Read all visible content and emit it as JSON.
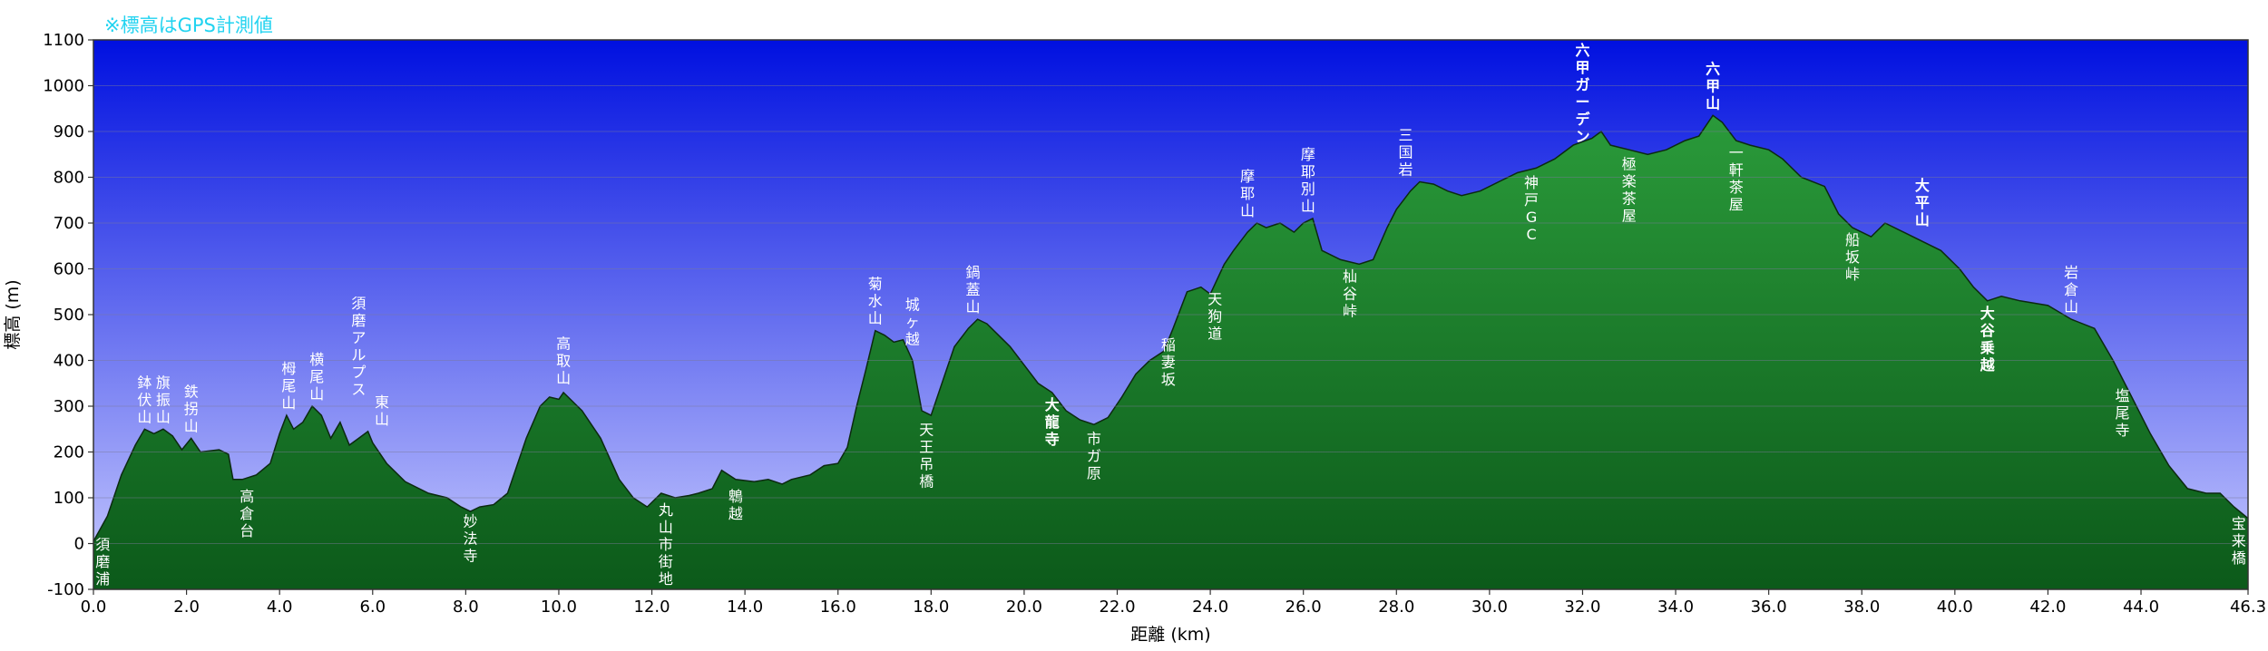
{
  "note": "※標高はGPS計測値",
  "chart_data": {
    "type": "area",
    "title": "",
    "xlabel": "距離 (km)",
    "ylabel": "標高 (m)",
    "xlim": [
      0,
      46.3
    ],
    "ylim": [
      -100,
      1100
    ],
    "grid": true,
    "x_ticks": [
      "0.0",
      "2.0",
      "4.0",
      "6.0",
      "8.0",
      "10.0",
      "12.0",
      "14.0",
      "16.0",
      "18.0",
      "20.0",
      "22.0",
      "24.0",
      "26.0",
      "28.0",
      "30.0",
      "32.0",
      "34.0",
      "36.0",
      "38.0",
      "40.0",
      "42.0",
      "44.0",
      "46.3"
    ],
    "y_ticks": [
      "-100",
      "0",
      "100",
      "200",
      "300",
      "400",
      "500",
      "600",
      "700",
      "800",
      "900",
      "1000",
      "1100"
    ],
    "colors": {
      "sky_top": "#0010e0",
      "sky_bottom": "#c8cbff",
      "terrain_top": "#2a9a3a",
      "terrain_bottom": "#0c5a1a",
      "edge": "#0c2a10"
    },
    "profile": [
      [
        0,
        5
      ],
      [
        0.3,
        60
      ],
      [
        0.6,
        150
      ],
      [
        0.9,
        215
      ],
      [
        1.1,
        250
      ],
      [
        1.3,
        240
      ],
      [
        1.5,
        250
      ],
      [
        1.7,
        235
      ],
      [
        1.9,
        205
      ],
      [
        2.1,
        230
      ],
      [
        2.3,
        200
      ],
      [
        2.7,
        205
      ],
      [
        2.9,
        195
      ],
      [
        3.0,
        140
      ],
      [
        3.2,
        140
      ],
      [
        3.5,
        150
      ],
      [
        3.8,
        175
      ],
      [
        4.0,
        240
      ],
      [
        4.15,
        280
      ],
      [
        4.3,
        250
      ],
      [
        4.5,
        265
      ],
      [
        4.7,
        300
      ],
      [
        4.9,
        280
      ],
      [
        5.1,
        230
      ],
      [
        5.3,
        265
      ],
      [
        5.5,
        215
      ],
      [
        5.7,
        230
      ],
      [
        5.9,
        245
      ],
      [
        6.0,
        220
      ],
      [
        6.3,
        175
      ],
      [
        6.7,
        135
      ],
      [
        7.2,
        110
      ],
      [
        7.6,
        100
      ],
      [
        7.9,
        80
      ],
      [
        8.1,
        70
      ],
      [
        8.3,
        80
      ],
      [
        8.6,
        85
      ],
      [
        8.9,
        110
      ],
      [
        9.3,
        230
      ],
      [
        9.6,
        300
      ],
      [
        9.8,
        320
      ],
      [
        10.0,
        315
      ],
      [
        10.1,
        330
      ],
      [
        10.3,
        310
      ],
      [
        10.5,
        290
      ],
      [
        10.9,
        230
      ],
      [
        11.3,
        140
      ],
      [
        11.6,
        100
      ],
      [
        11.9,
        80
      ],
      [
        12.2,
        110
      ],
      [
        12.5,
        100
      ],
      [
        12.8,
        105
      ],
      [
        13.0,
        110
      ],
      [
        13.3,
        120
      ],
      [
        13.5,
        160
      ],
      [
        13.8,
        140
      ],
      [
        14.2,
        135
      ],
      [
        14.5,
        140
      ],
      [
        14.8,
        130
      ],
      [
        15.0,
        140
      ],
      [
        15.4,
        150
      ],
      [
        15.7,
        170
      ],
      [
        16.0,
        175
      ],
      [
        16.2,
        210
      ],
      [
        16.4,
        300
      ],
      [
        16.6,
        380
      ],
      [
        16.8,
        465
      ],
      [
        17.0,
        455
      ],
      [
        17.2,
        440
      ],
      [
        17.4,
        445
      ],
      [
        17.6,
        400
      ],
      [
        17.8,
        290
      ],
      [
        18.0,
        280
      ],
      [
        18.3,
        370
      ],
      [
        18.5,
        430
      ],
      [
        18.8,
        470
      ],
      [
        19.0,
        490
      ],
      [
        19.2,
        480
      ],
      [
        19.4,
        460
      ],
      [
        19.7,
        430
      ],
      [
        20.0,
        390
      ],
      [
        20.3,
        350
      ],
      [
        20.6,
        330
      ],
      [
        20.9,
        290
      ],
      [
        21.2,
        270
      ],
      [
        21.5,
        260
      ],
      [
        21.8,
        275
      ],
      [
        22.1,
        320
      ],
      [
        22.4,
        370
      ],
      [
        22.7,
        400
      ],
      [
        23.0,
        420
      ],
      [
        23.2,
        470
      ],
      [
        23.5,
        550
      ],
      [
        23.8,
        560
      ],
      [
        24.0,
        545
      ],
      [
        24.3,
        610
      ],
      [
        24.5,
        640
      ],
      [
        24.8,
        680
      ],
      [
        25.0,
        700
      ],
      [
        25.2,
        690
      ],
      [
        25.5,
        700
      ],
      [
        25.8,
        680
      ],
      [
        26.0,
        700
      ],
      [
        26.2,
        710
      ],
      [
        26.4,
        640
      ],
      [
        26.8,
        620
      ],
      [
        27.2,
        610
      ],
      [
        27.5,
        620
      ],
      [
        27.8,
        690
      ],
      [
        28.0,
        730
      ],
      [
        28.3,
        770
      ],
      [
        28.5,
        790
      ],
      [
        28.8,
        785
      ],
      [
        29.1,
        770
      ],
      [
        29.4,
        760
      ],
      [
        29.8,
        770
      ],
      [
        30.2,
        790
      ],
      [
        30.6,
        810
      ],
      [
        31.0,
        820
      ],
      [
        31.4,
        840
      ],
      [
        31.8,
        870
      ],
      [
        32.2,
        885
      ],
      [
        32.4,
        900
      ],
      [
        32.6,
        870
      ],
      [
        33.0,
        860
      ],
      [
        33.4,
        850
      ],
      [
        33.8,
        860
      ],
      [
        34.2,
        880
      ],
      [
        34.5,
        890
      ],
      [
        34.8,
        935
      ],
      [
        35.0,
        920
      ],
      [
        35.3,
        880
      ],
      [
        35.6,
        870
      ],
      [
        36.0,
        860
      ],
      [
        36.3,
        840
      ],
      [
        36.7,
        800
      ],
      [
        37.2,
        780
      ],
      [
        37.5,
        720
      ],
      [
        37.8,
        690
      ],
      [
        38.2,
        670
      ],
      [
        38.5,
        700
      ],
      [
        38.9,
        680
      ],
      [
        39.3,
        660
      ],
      [
        39.7,
        640
      ],
      [
        40.1,
        600
      ],
      [
        40.4,
        560
      ],
      [
        40.7,
        530
      ],
      [
        41.0,
        540
      ],
      [
        41.4,
        530
      ],
      [
        42.0,
        520
      ],
      [
        42.5,
        490
      ],
      [
        43.0,
        470
      ],
      [
        43.4,
        400
      ],
      [
        43.8,
        320
      ],
      [
        44.2,
        240
      ],
      [
        44.6,
        170
      ],
      [
        45.0,
        120
      ],
      [
        45.4,
        110
      ],
      [
        45.7,
        110
      ],
      [
        46.0,
        80
      ],
      [
        46.3,
        55
      ]
    ],
    "landmarks": [
      {
        "name": "須磨浦",
        "x": 0.2,
        "y": 20,
        "pos": "below",
        "bold": false
      },
      {
        "name": "鉢伏山",
        "x": 1.1,
        "y": 250,
        "pos": "above",
        "bold": false
      },
      {
        "name": "旗振山",
        "x": 1.5,
        "y": 250,
        "pos": "above",
        "bold": false
      },
      {
        "name": "鉄拐山",
        "x": 2.1,
        "y": 230,
        "pos": "above",
        "bold": false
      },
      {
        "name": "高倉台",
        "x": 3.3,
        "y": 130,
        "pos": "below",
        "bold": false
      },
      {
        "name": "栂尾山",
        "x": 4.2,
        "y": 280,
        "pos": "above",
        "bold": false
      },
      {
        "name": "横尾山",
        "x": 4.8,
        "y": 300,
        "pos": "above",
        "bold": false
      },
      {
        "name": "須磨アルプス",
        "x": 5.7,
        "y": 310,
        "pos": "above",
        "bold": false
      },
      {
        "name": "東山",
        "x": 6.2,
        "y": 245,
        "pos": "above",
        "bold": false
      },
      {
        "name": "妙法寺",
        "x": 8.1,
        "y": 75,
        "pos": "below",
        "bold": false
      },
      {
        "name": "高取山",
        "x": 10.1,
        "y": 335,
        "pos": "above",
        "bold": false
      },
      {
        "name": "丸山市街地",
        "x": 12.3,
        "y": 95,
        "pos": "below",
        "bold": false
      },
      {
        "name": "鵯越",
        "x": 13.8,
        "y": 130,
        "pos": "below",
        "bold": false
      },
      {
        "name": "菊水山",
        "x": 16.8,
        "y": 465,
        "pos": "above",
        "bold": false
      },
      {
        "name": "城ヶ越",
        "x": 17.6,
        "y": 420,
        "pos": "above",
        "bold": false
      },
      {
        "name": "天王吊橋",
        "x": 17.9,
        "y": 275,
        "pos": "below",
        "bold": false
      },
      {
        "name": "鍋蓋山",
        "x": 18.9,
        "y": 490,
        "pos": "above",
        "bold": false
      },
      {
        "name": "大龍寺",
        "x": 20.6,
        "y": 330,
        "pos": "below",
        "bold": true
      },
      {
        "name": "市ガ原",
        "x": 21.5,
        "y": 255,
        "pos": "below",
        "bold": false
      },
      {
        "name": "稲妻坂",
        "x": 23.1,
        "y": 460,
        "pos": "below",
        "bold": false
      },
      {
        "name": "天狗道",
        "x": 24.1,
        "y": 560,
        "pos": "below",
        "bold": false
      },
      {
        "name": "摩耶山",
        "x": 24.8,
        "y": 700,
        "pos": "above",
        "bold": false
      },
      {
        "name": "摩耶別山",
        "x": 26.1,
        "y": 710,
        "pos": "above",
        "bold": false
      },
      {
        "name": "杣谷峠",
        "x": 27.0,
        "y": 610,
        "pos": "below",
        "bold": false
      },
      {
        "name": "三国岩",
        "x": 28.2,
        "y": 790,
        "pos": "above",
        "bold": false
      },
      {
        "name": "神戸GC",
        "x": 30.9,
        "y": 815,
        "pos": "below",
        "bold": false
      },
      {
        "name": "六甲ガーデン",
        "x": 32.0,
        "y": 900,
        "pos": "above",
        "bold": true
      },
      {
        "name": "極楽茶屋",
        "x": 33.0,
        "y": 855,
        "pos": "below",
        "bold": false
      },
      {
        "name": "六甲山",
        "x": 34.8,
        "y": 935,
        "pos": "above",
        "bold": true
      },
      {
        "name": "一軒茶屋",
        "x": 35.3,
        "y": 880,
        "pos": "below",
        "bold": false
      },
      {
        "name": "船坂峠",
        "x": 37.8,
        "y": 690,
        "pos": "below",
        "bold": false
      },
      {
        "name": "大平山",
        "x": 39.3,
        "y": 680,
        "pos": "above",
        "bold": true
      },
      {
        "name": "大谷乗越",
        "x": 40.7,
        "y": 530,
        "pos": "below",
        "bold": true
      },
      {
        "name": "岩倉山",
        "x": 42.5,
        "y": 490,
        "pos": "above",
        "bold": false
      },
      {
        "name": "塩尾寺",
        "x": 43.6,
        "y": 350,
        "pos": "below",
        "bold": false
      },
      {
        "name": "宝来橋",
        "x": 46.1,
        "y": 70,
        "pos": "below",
        "bold": false
      }
    ]
  }
}
